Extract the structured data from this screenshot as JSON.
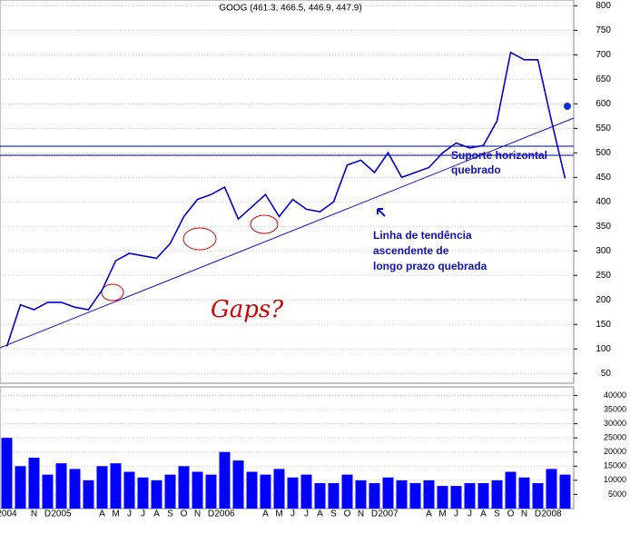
{
  "chart_data": {
    "type": "line",
    "title": "GOOG (461.3, 466.5, 446.9, 447.9)",
    "categories": [
      "2004",
      null,
      "N",
      "D",
      "2005",
      null,
      null,
      "A",
      "M",
      "J",
      "J",
      "A",
      "S",
      "O",
      "N",
      "D",
      "2006",
      null,
      null,
      "A",
      "M",
      "J",
      "J",
      "A",
      "S",
      "O",
      "N",
      "D",
      "2007",
      null,
      null,
      "A",
      "M",
      "J",
      "J",
      "A",
      "S",
      "O",
      "N",
      "D",
      "2008",
      null
    ],
    "series": [
      {
        "color": "#0000c8",
        "values": [
          105,
          190,
          180,
          195,
          195,
          185,
          180,
          220,
          280,
          295,
          290,
          285,
          315,
          370,
          405,
          415,
          430,
          365,
          390,
          415,
          370,
          405,
          385,
          380,
          400,
          475,
          485,
          460,
          500,
          450,
          460,
          470,
          500,
          520,
          510,
          515,
          565,
          705,
          690,
          690,
          565,
          448
        ]
      },
      {
        "type": "bar",
        "axis": "y2",
        "color": "#0000ff",
        "values": [
          25000,
          15000,
          18000,
          12000,
          16000,
          14000,
          10000,
          15000,
          16000,
          13000,
          11000,
          10000,
          12000,
          15000,
          13000,
          12000,
          20000,
          17000,
          13000,
          12000,
          14000,
          11000,
          12000,
          9000,
          9000,
          12000,
          10000,
          9000,
          11000,
          10000,
          9000,
          10000,
          8000,
          8000,
          9000,
          9000,
          10000,
          13000,
          11000,
          9000,
          14000,
          12000
        ]
      }
    ],
    "ylim": [
      30,
      810
    ],
    "yticks": [
      50,
      100,
      150,
      200,
      250,
      300,
      350,
      400,
      450,
      500,
      550,
      600,
      650,
      700,
      750,
      800
    ],
    "y2lim": [
      0,
      42000
    ],
    "y2ticks": [
      5000,
      10000,
      15000,
      20000,
      25000,
      30000,
      35000,
      40000
    ],
    "grid": true,
    "annotations": [
      "Suporte horizontal",
      "quebrado",
      "Linha de tendência",
      "ascendente de",
      "longo prazo quebrada",
      "Gaps?"
    ]
  }
}
